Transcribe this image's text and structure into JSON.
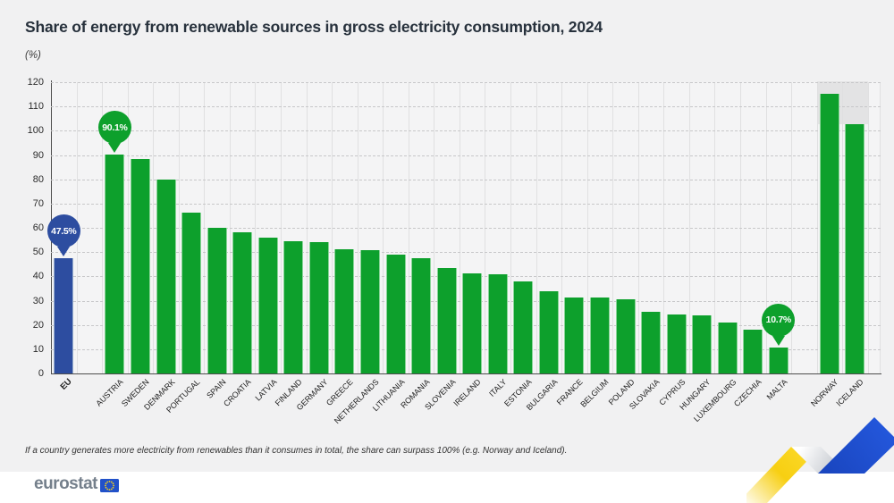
{
  "title": "Share of energy from renewable sources in gross electricity consumption, 2024",
  "unit_label": "(%)",
  "footnote": "If a country generates more electricity from renewables than it consumes in total, the share can surpass 100% (e.g. Norway and Iceland).",
  "footer": {
    "logo_text": "eurostat"
  },
  "chart_data": {
    "type": "bar",
    "title": "Share of energy from renewable sources in gross electricity consumption, 2024",
    "ylabel": "(%)",
    "xlabel": "",
    "ylim": [
      0,
      120
    ],
    "ytick_step": 10,
    "grid": "horizontal-dashed",
    "legend": "none",
    "categories": [
      "EU",
      "AUSTRIA",
      "SWEDEN",
      "DENMARK",
      "PORTUGAL",
      "SPAIN",
      "CROATIA",
      "LATVIA",
      "FINLAND",
      "GERMANY",
      "GREECE",
      "NETHERLANDS",
      "LITHUANIA",
      "ROMANIA",
      "SLOVENIA",
      "IRELAND",
      "ITALY",
      "ESTONIA",
      "BULGARIA",
      "FRANCE",
      "BELGIUM",
      "POLAND",
      "SLOVAKIA",
      "CYPRUS",
      "HUNGARY",
      "LUXEMBOURG",
      "CZECHIA",
      "MALTA",
      "NORWAY",
      "ICELAND"
    ],
    "values": [
      47.5,
      90.1,
      88.5,
      80.0,
      66.4,
      60.2,
      58.1,
      55.9,
      54.6,
      54.3,
      51.3,
      50.8,
      49.0,
      47.6,
      43.6,
      41.4,
      40.9,
      37.9,
      33.9,
      31.4,
      31.3,
      30.5,
      25.3,
      24.2,
      24.1,
      21.0,
      18.0,
      10.7,
      115.4,
      102.9
    ],
    "groups": [
      "eu",
      "member",
      "member",
      "member",
      "member",
      "member",
      "member",
      "member",
      "member",
      "member",
      "member",
      "member",
      "member",
      "member",
      "member",
      "member",
      "member",
      "member",
      "member",
      "member",
      "member",
      "member",
      "member",
      "member",
      "member",
      "member",
      "member",
      "member",
      "efta",
      "efta"
    ],
    "callouts": [
      {
        "category": "EU",
        "text": "47.5%"
      },
      {
        "category": "AUSTRIA",
        "text": "90.1%"
      },
      {
        "category": "MALTA",
        "text": "10.7%"
      }
    ],
    "highlighted_categories": [
      "NORWAY",
      "ICELAND"
    ],
    "bar_color": "#0da02c",
    "eu_bar_color": "#2d4da0",
    "highlight_bg": "#e3e3e4"
  }
}
